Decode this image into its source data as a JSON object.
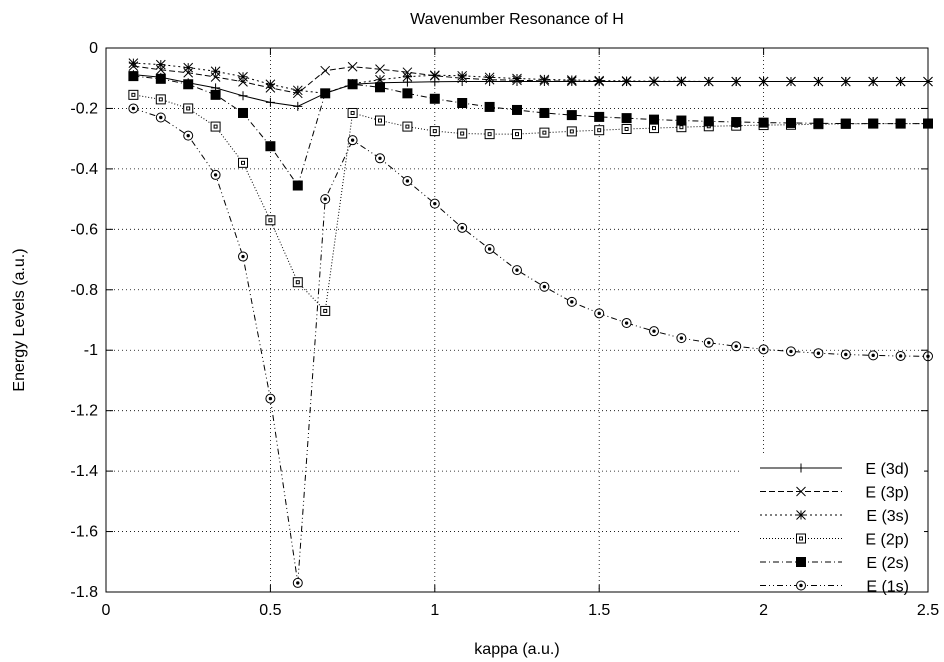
{
  "chart_data": {
    "type": "line",
    "title": "Wavenumber Resonance of H",
    "xlabel": "kappa (a.u.)",
    "ylabel": "Energy Levels (a.u.)",
    "xlim": [
      0,
      2.5
    ],
    "ylim": [
      -1.8,
      0
    ],
    "xticks": [
      "0",
      "0.5",
      "1",
      "1.5",
      "2",
      "2.5"
    ],
    "xtick_values": [
      0,
      0.5,
      1,
      1.5,
      2,
      2.5
    ],
    "yticks": [
      "0",
      "-0.2",
      "-0.4",
      "-0.6",
      "-0.8",
      "-1",
      "-1.2",
      "-1.4",
      "-1.6",
      "-1.8"
    ],
    "ytick_values": [
      0,
      -0.2,
      -0.4,
      -0.6,
      -0.8,
      -1,
      -1.2,
      -1.4,
      -1.6,
      -1.8
    ],
    "grid": true,
    "legend_position": "bottom-right",
    "x": [
      0.0833,
      0.1667,
      0.25,
      0.3333,
      0.4167,
      0.5,
      0.5833,
      0.6667,
      0.75,
      0.8333,
      0.9167,
      1.0,
      1.0833,
      1.1667,
      1.25,
      1.3333,
      1.4167,
      1.5,
      1.5833,
      1.6667,
      1.75,
      1.8333,
      1.9167,
      2.0,
      2.0833,
      2.1667,
      2.25,
      2.3333,
      2.4167,
      2.5
    ],
    "series": [
      {
        "name": "E (3d)",
        "marker": "plus",
        "dash": "",
        "values": [
          -0.088,
          -0.097,
          -0.115,
          -0.132,
          -0.158,
          -0.18,
          -0.193,
          -0.15,
          -0.12,
          -0.115,
          -0.113,
          -0.112,
          -0.111,
          -0.111,
          -0.111,
          -0.111,
          -0.111,
          -0.111,
          -0.111,
          -0.111,
          -0.111,
          -0.111,
          -0.111,
          -0.111,
          -0.111,
          -0.111,
          -0.111,
          -0.111,
          -0.111,
          -0.111
        ]
      },
      {
        "name": "E (3p)",
        "marker": "cross",
        "dash": "6 3",
        "values": [
          -0.06,
          -0.072,
          -0.082,
          -0.096,
          -0.112,
          -0.132,
          -0.15,
          -0.075,
          -0.062,
          -0.07,
          -0.08,
          -0.092,
          -0.1,
          -0.105,
          -0.107,
          -0.109,
          -0.11,
          -0.111,
          -0.111,
          -0.111,
          -0.111,
          -0.111,
          -0.111,
          -0.111,
          -0.111,
          -0.111,
          -0.111,
          -0.111,
          -0.111,
          -0.111
        ]
      },
      {
        "name": "E (3s)",
        "marker": "star",
        "dash": "2 3",
        "values": [
          -0.05,
          -0.055,
          -0.065,
          -0.077,
          -0.095,
          -0.12,
          -0.14,
          -0.15,
          -0.118,
          -0.105,
          -0.095,
          -0.09,
          -0.092,
          -0.097,
          -0.101,
          -0.104,
          -0.106,
          -0.108,
          -0.109,
          -0.11,
          -0.11,
          -0.111,
          -0.111,
          -0.111,
          -0.111,
          -0.111,
          -0.111,
          -0.111,
          -0.111,
          -0.111
        ]
      },
      {
        "name": "E (2p)",
        "marker": "open-square",
        "dash": "1 2",
        "values": [
          -0.155,
          -0.17,
          -0.2,
          -0.26,
          -0.38,
          -0.57,
          -0.775,
          -0.87,
          -0.215,
          -0.24,
          -0.26,
          -0.275,
          -0.283,
          -0.285,
          -0.285,
          -0.28,
          -0.276,
          -0.272,
          -0.268,
          -0.265,
          -0.262,
          -0.259,
          -0.257,
          -0.255,
          -0.254,
          -0.252,
          -0.251,
          -0.25,
          -0.25,
          -0.25
        ]
      },
      {
        "name": "E (2s)",
        "marker": "filled-square",
        "dash": "6 3 1 3",
        "values": [
          -0.093,
          -0.102,
          -0.12,
          -0.155,
          -0.215,
          -0.325,
          -0.455,
          -0.15,
          -0.12,
          -0.13,
          -0.15,
          -0.168,
          -0.182,
          -0.195,
          -0.205,
          -0.215,
          -0.222,
          -0.228,
          -0.232,
          -0.237,
          -0.24,
          -0.243,
          -0.245,
          -0.247,
          -0.248,
          -0.249,
          -0.25,
          -0.25,
          -0.25,
          -0.25
        ]
      },
      {
        "name": "E (1s)",
        "marker": "open-circle",
        "dash": "6 3 1 3 1 3",
        "values": [
          -0.2,
          -0.23,
          -0.29,
          -0.42,
          -0.69,
          -1.16,
          -1.77,
          -0.5,
          -0.305,
          -0.365,
          -0.44,
          -0.515,
          -0.595,
          -0.665,
          -0.735,
          -0.79,
          -0.84,
          -0.878,
          -0.91,
          -0.937,
          -0.96,
          -0.975,
          -0.987,
          -0.997,
          -1.004,
          -1.01,
          -1.014,
          -1.017,
          -1.019,
          -1.02
        ]
      }
    ]
  }
}
